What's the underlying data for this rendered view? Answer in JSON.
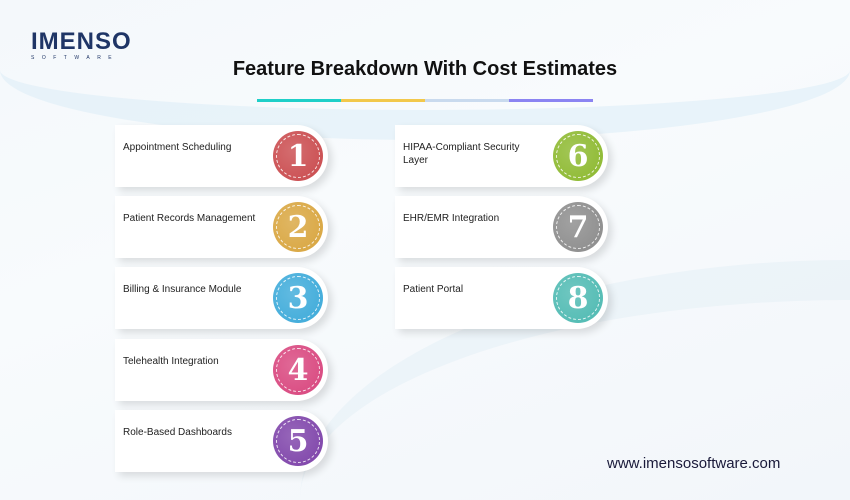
{
  "logo": {
    "name": "IMENSO",
    "sub": "SOFTWARE"
  },
  "title": "Feature Breakdown With Cost Estimates",
  "accent_colors": [
    "#1fcfc8",
    "#f2c84b",
    "#c9daee",
    "#8b84f2"
  ],
  "features": [
    {
      "number": "1",
      "label": "Appointment Scheduling",
      "color": "#c9484b"
    },
    {
      "number": "2",
      "label": "Patient Records Management",
      "color": "#d8a43c"
    },
    {
      "number": "3",
      "label": "Billing & Insurance Module",
      "color": "#3aa9d9"
    },
    {
      "number": "4",
      "label": "Telehealth Integration",
      "color": "#d8437c"
    },
    {
      "number": "5",
      "label": "Role-Based Dashboards",
      "color": "#7c40a8"
    },
    {
      "number": "6",
      "label": "HIPAA-Compliant Security Layer",
      "color": "#8bb82c"
    },
    {
      "number": "7",
      "label": "EHR/EMR Integration",
      "color": "#8a8a8a"
    },
    {
      "number": "8",
      "label": "Patient Portal",
      "color": "#4cb9b1"
    }
  ],
  "website": "www.imensosoftware.com"
}
